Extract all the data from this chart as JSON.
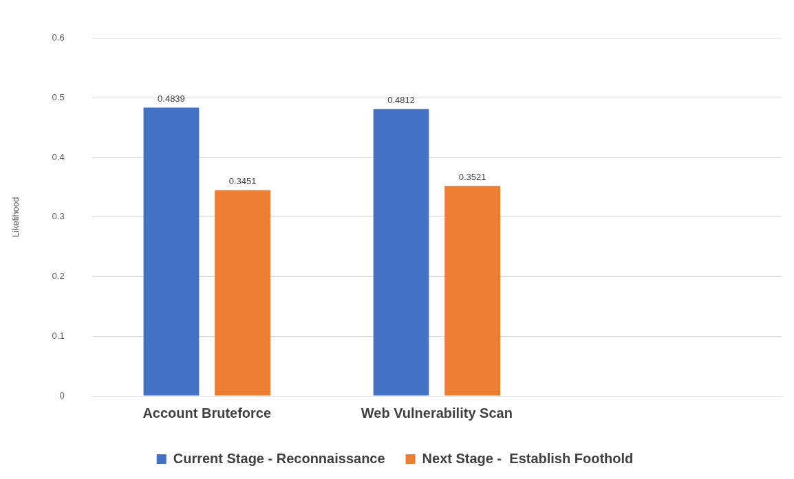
{
  "chart_data": {
    "type": "bar",
    "ylabel": "Likelihood",
    "categories": [
      "Account Bruteforce",
      "Web Vulnerability Scan",
      null
    ],
    "series": [
      {
        "name": "Current Stage - Reconnaissance",
        "color": "#4472c4",
        "values": [
          0.4839,
          0.4812,
          null
        ]
      },
      {
        "name": "Next Stage -  Establish Foothold",
        "color": "#ed7d31",
        "values": [
          0.3451,
          0.3521,
          null
        ]
      }
    ],
    "ylim": [
      0,
      0.6
    ],
    "yticks": [
      0,
      0.1,
      0.2,
      0.3,
      0.4,
      0.5,
      0.6
    ],
    "grid": "y",
    "legend": "bottom",
    "data_labels": true
  }
}
